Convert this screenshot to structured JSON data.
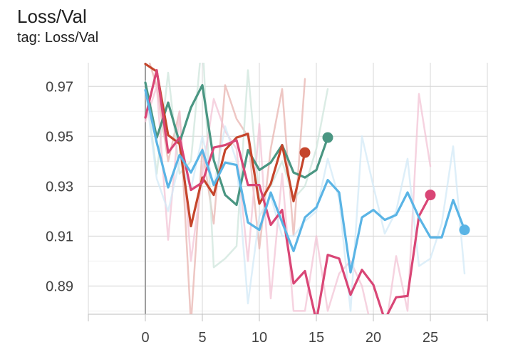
{
  "header": {
    "title": "Loss/Val",
    "tag": "tag: Loss/Val"
  },
  "chart_data": {
    "type": "line",
    "xlim": [
      -5,
      30
    ],
    "ylim": [
      0.8787,
      0.9795
    ],
    "x_ticks": [
      0,
      5,
      10,
      15,
      20,
      25
    ],
    "y_ticks": [
      0.97,
      0.95,
      0.93,
      0.91,
      0.89
    ],
    "x_tick_labels": [
      "0",
      "5",
      "10",
      "15",
      "20",
      "25"
    ],
    "y_tick_labels": [
      "0.97",
      "0.95",
      "0.93",
      "0.91",
      "0.89"
    ],
    "grid": true,
    "series": [
      {
        "color": "#e8b4b0",
        "raw": true,
        "x": [
          0,
          1,
          2,
          3,
          4,
          5,
          6,
          7,
          8,
          9,
          10,
          11,
          12,
          13,
          14
        ],
        "y": [
          0.985,
          0.97,
          0.94,
          0.96,
          0.875,
          0.945,
          0.915,
          0.9705,
          0.957,
          0.95,
          0.905,
          0.945,
          0.969,
          0.91,
          0.973
        ]
      },
      {
        "color": "#cfe6dc",
        "raw": true,
        "x": [
          0,
          1,
          2,
          3,
          4,
          5,
          6,
          7,
          8,
          9,
          10,
          11,
          12,
          13,
          14,
          15,
          16
        ],
        "y": [
          0.972,
          0.935,
          0.9755,
          0.935,
          0.94,
          0.99,
          0.8975,
          0.901,
          0.906,
          0.9765,
          0.925,
          0.93,
          0.94,
          0.925,
          0.93,
          0.945,
          0.969
        ]
      },
      {
        "color": "#f3c4d6",
        "raw": true,
        "x": [
          0,
          1,
          2,
          3,
          4,
          5,
          6,
          7,
          8,
          9,
          10,
          11,
          12,
          13,
          14,
          15,
          16,
          17,
          18,
          19,
          20,
          21,
          22,
          23,
          24,
          25
        ],
        "y": [
          0.956,
          0.97,
          0.9085,
          0.96,
          0.9,
          0.935,
          0.965,
          0.952,
          0.945,
          0.9,
          0.955,
          0.885,
          0.935,
          0.88,
          0.88,
          0.91,
          0.88,
          0.895,
          0.9,
          0.89,
          0.87,
          0.87,
          0.902,
          0.88,
          0.967,
          0.938
        ]
      },
      {
        "color": "#d3eaf7",
        "raw": true,
        "x": [
          0,
          1,
          2,
          3,
          4,
          5,
          6,
          7,
          8,
          9,
          10,
          11,
          12,
          13,
          14,
          15,
          16,
          17,
          18,
          19,
          20,
          21,
          22,
          23,
          24,
          25,
          26,
          27,
          28
        ],
        "y": [
          0.969,
          0.933,
          0.92,
          0.94,
          0.929,
          0.95,
          0.93,
          0.954,
          0.94,
          0.883,
          0.918,
          0.926,
          0.91,
          0.91,
          0.916,
          0.92,
          0.941,
          0.925,
          0.88,
          0.95,
          0.93,
          0.911,
          0.92,
          0.941,
          0.898,
          0.901,
          0.915,
          0.946,
          0.895
        ]
      },
      {
        "color": "#4a9682",
        "x": [
          0,
          1,
          2,
          3,
          4,
          5,
          6,
          7,
          8,
          9,
          10,
          11,
          12,
          13,
          14,
          15,
          16
        ],
        "y": [
          0.9715,
          0.9495,
          0.9635,
          0.9475,
          0.9615,
          0.9705,
          0.9405,
          0.9265,
          0.9225,
          0.9445,
          0.9365,
          0.9395,
          0.9465,
          0.9355,
          0.9335,
          0.9365,
          0.9495
        ],
        "end_marker": true
      },
      {
        "color": "#c5452b",
        "x": [
          0,
          1,
          2,
          3,
          4,
          5,
          6,
          7,
          8,
          9,
          10,
          11,
          12,
          13,
          14
        ],
        "y": [
          0.979,
          0.976,
          0.9505,
          0.947,
          0.914,
          0.9335,
          0.9265,
          0.9445,
          0.9495,
          0.951,
          0.923,
          0.931,
          0.9465,
          0.924,
          0.9435
        ],
        "end_marker": true
      },
      {
        "color": "#d94676",
        "x": [
          0,
          1,
          2,
          3,
          4,
          5,
          6,
          7,
          8,
          9,
          10,
          11,
          12,
          13,
          14,
          15,
          16,
          17,
          18,
          19,
          20,
          21,
          22,
          23,
          24,
          25
        ],
        "y": [
          0.9575,
          0.9765,
          0.9435,
          0.9495,
          0.9285,
          0.9315,
          0.9455,
          0.9465,
          0.9485,
          0.9305,
          0.9305,
          0.9145,
          0.9205,
          0.891,
          0.896,
          0.876,
          0.9025,
          0.901,
          0.8865,
          0.8965,
          0.8905,
          0.8765,
          0.8855,
          0.886,
          0.918,
          0.9265
        ],
        "end_marker": true
      },
      {
        "color": "#5ab4e5",
        "x": [
          0,
          1,
          2,
          3,
          4,
          5,
          6,
          7,
          8,
          9,
          10,
          11,
          12,
          13,
          14,
          15,
          16,
          17,
          18,
          19,
          20,
          21,
          22,
          23,
          24,
          25,
          26,
          27,
          28
        ],
        "y": [
          0.9685,
          0.9475,
          0.9295,
          0.9425,
          0.9355,
          0.9445,
          0.9305,
          0.9395,
          0.9385,
          0.9155,
          0.9125,
          0.9275,
          0.9155,
          0.904,
          0.9175,
          0.9215,
          0.9325,
          0.9275,
          0.8955,
          0.9175,
          0.9205,
          0.9165,
          0.9185,
          0.9275,
          0.9175,
          0.9095,
          0.9095,
          0.9245,
          0.9125
        ],
        "end_marker": true
      }
    ]
  }
}
